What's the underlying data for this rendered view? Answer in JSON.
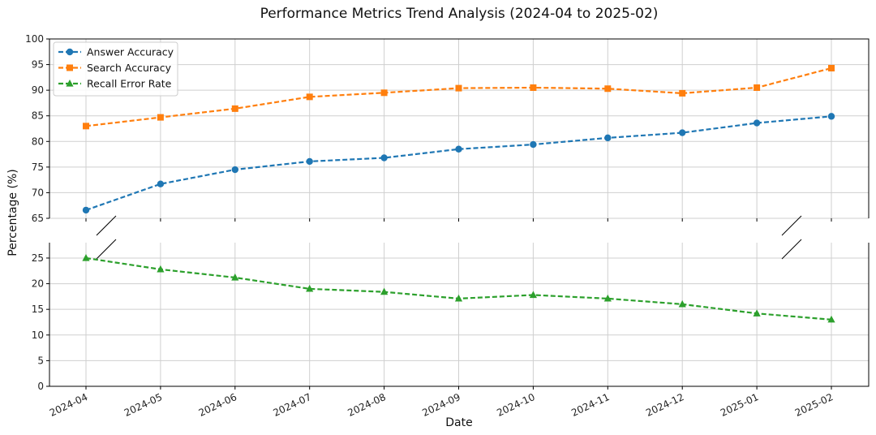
{
  "chart_data": {
    "type": "line",
    "title": "Performance Metrics Trend Analysis (2024-04 to 2025-02)",
    "xlabel": "Date",
    "ylabel": "Percentage (%)",
    "categories": [
      "2024-04",
      "2024-05",
      "2024-06",
      "2024-07",
      "2024-08",
      "2024-09",
      "2024-10",
      "2024-11",
      "2024-12",
      "2025-01",
      "2025-02"
    ],
    "broken_y_axis": true,
    "upper_ylim": [
      65,
      100
    ],
    "upper_yticks": [
      "65",
      "70",
      "75",
      "80",
      "85",
      "90",
      "95",
      "100"
    ],
    "lower_ylim": [
      0,
      28
    ],
    "lower_yticks": [
      "0",
      "5",
      "10",
      "15",
      "20",
      "25"
    ],
    "grid": true,
    "legend_position": "upper-left",
    "series": [
      {
        "name": "Answer Accuracy",
        "color": "#1f77b4",
        "marker": "circle",
        "line_style": "dashed",
        "panel": "upper",
        "values": [
          66.6,
          71.7,
          74.5,
          76.1,
          76.8,
          78.5,
          79.4,
          80.7,
          81.7,
          83.6,
          84.9
        ]
      },
      {
        "name": "Search Accuracy",
        "color": "#ff7f0e",
        "marker": "square",
        "line_style": "dashed",
        "panel": "upper",
        "values": [
          83.0,
          84.7,
          86.4,
          88.7,
          89.5,
          90.4,
          90.5,
          90.3,
          89.4,
          90.5,
          94.3
        ]
      },
      {
        "name": "Recall Error Rate",
        "color": "#2ca02c",
        "marker": "triangle",
        "line_style": "dashed",
        "panel": "lower",
        "values": [
          25.0,
          22.8,
          21.2,
          19.0,
          18.4,
          17.1,
          17.8,
          17.1,
          16.0,
          14.2,
          13.0
        ]
      }
    ]
  }
}
